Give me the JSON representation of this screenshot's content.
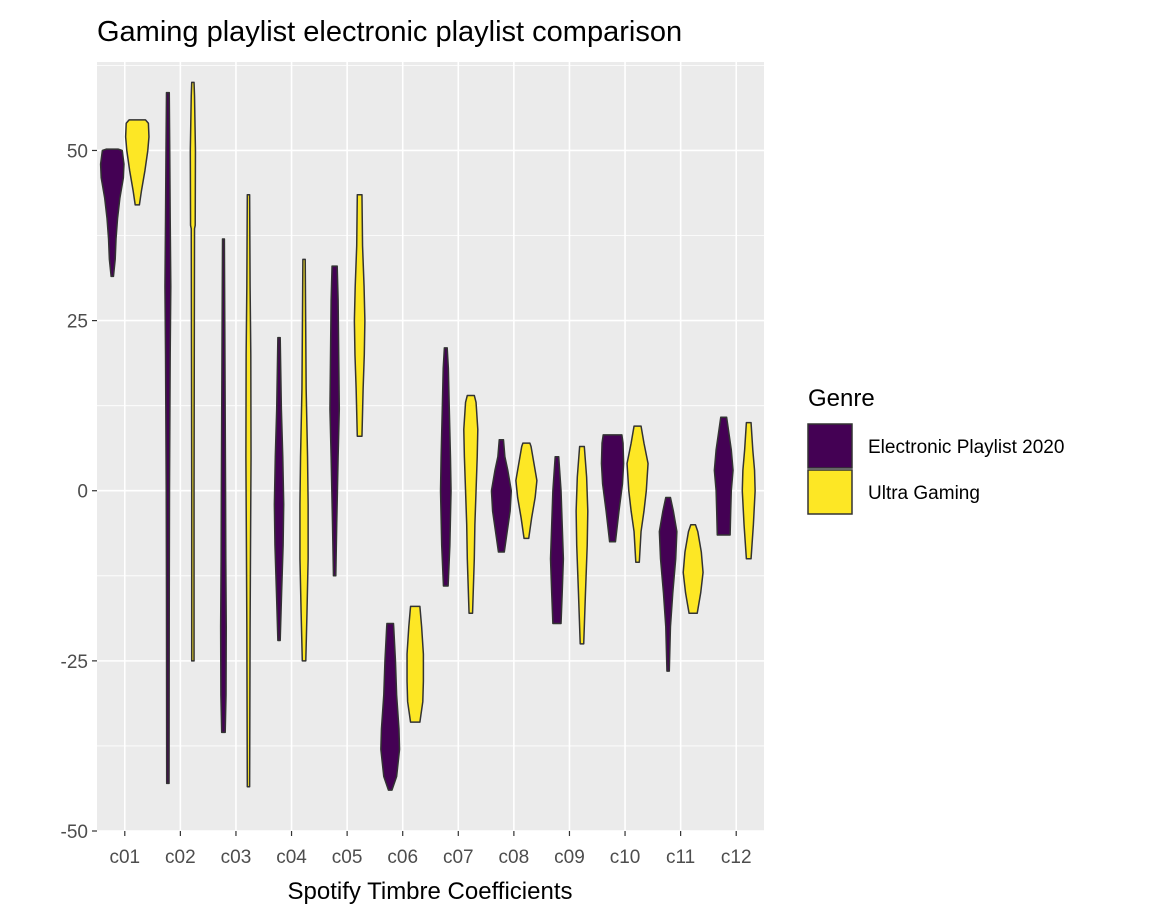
{
  "chart_data": {
    "type": "violin",
    "title": "Gaming playlist electronic playlist comparison",
    "xlabel": "Spotify Timbre Coefficients",
    "ylabel": "",
    "ylim": [
      -50,
      63
    ],
    "yticks": [
      -50,
      -25,
      0,
      25,
      50
    ],
    "grid": true,
    "categories": [
      "c01",
      "c02",
      "c03",
      "c04",
      "c05",
      "c06",
      "c07",
      "c08",
      "c09",
      "c10",
      "c11",
      "c12"
    ],
    "legend": {
      "title": "Genre",
      "placement": "right"
    },
    "series": [
      {
        "name": "Electronic Playlist 2020",
        "color": "#440154",
        "violins": [
          {
            "profile": [
              [
                31.5,
                0.1
              ],
              [
                34,
                0.25
              ],
              [
                37,
                0.32
              ],
              [
                40,
                0.45
              ],
              [
                43,
                0.65
              ],
              [
                46,
                0.95
              ],
              [
                48,
                1.0
              ],
              [
                50,
                0.85
              ],
              [
                50.2,
                0.5
              ]
            ]
          },
          {
            "profile": [
              [
                -43,
                0.1
              ],
              [
                -15,
                0.12
              ],
              [
                0,
                0.14
              ],
              [
                20,
                0.2
              ],
              [
                30,
                0.25
              ],
              [
                40,
                0.2
              ],
              [
                50,
                0.16
              ],
              [
                58.5,
                0.12
              ]
            ]
          },
          {
            "profile": [
              [
                -35.5,
                0.15
              ],
              [
                -30,
                0.22
              ],
              [
                -20,
                0.24
              ],
              [
                -10,
                0.2
              ],
              [
                0,
                0.18
              ],
              [
                15,
                0.14
              ],
              [
                30,
                0.1
              ],
              [
                37,
                0.08
              ]
            ]
          },
          {
            "profile": [
              [
                -22,
                0.1
              ],
              [
                -15,
                0.22
              ],
              [
                -8,
                0.35
              ],
              [
                -2,
                0.4
              ],
              [
                5,
                0.32
              ],
              [
                12,
                0.2
              ],
              [
                22.5,
                0.1
              ]
            ]
          },
          {
            "profile": [
              [
                -12.5,
                0.1
              ],
              [
                -5,
                0.18
              ],
              [
                5,
                0.3
              ],
              [
                12,
                0.4
              ],
              [
                20,
                0.35
              ],
              [
                28,
                0.3
              ],
              [
                33,
                0.22
              ]
            ]
          },
          {
            "profile": [
              [
                -44,
                0.15
              ],
              [
                -42,
                0.55
              ],
              [
                -38,
                0.8
              ],
              [
                -35,
                0.75
              ],
              [
                -30,
                0.55
              ],
              [
                -25,
                0.45
              ],
              [
                -20,
                0.3
              ],
              [
                -19.5,
                0.28
              ]
            ]
          },
          {
            "profile": [
              [
                -14,
                0.2
              ],
              [
                -8,
                0.35
              ],
              [
                0,
                0.45
              ],
              [
                5,
                0.4
              ],
              [
                12,
                0.3
              ],
              [
                18,
                0.22
              ],
              [
                21,
                0.12
              ]
            ]
          },
          {
            "profile": [
              [
                -9,
                0.25
              ],
              [
                -6,
                0.5
              ],
              [
                -3,
                0.75
              ],
              [
                0,
                0.85
              ],
              [
                3,
                0.55
              ],
              [
                5,
                0.3
              ],
              [
                7.5,
                0.18
              ]
            ]
          },
          {
            "profile": [
              [
                -19.5,
                0.35
              ],
              [
                -15,
                0.45
              ],
              [
                -10,
                0.55
              ],
              [
                -5,
                0.45
              ],
              [
                0,
                0.35
              ],
              [
                5,
                0.15
              ]
            ]
          },
          {
            "profile": [
              [
                -7.5,
                0.25
              ],
              [
                -3,
                0.55
              ],
              [
                1,
                0.85
              ],
              [
                4,
                0.95
              ],
              [
                7,
                0.9
              ],
              [
                8.2,
                0.8
              ]
            ]
          },
          {
            "profile": [
              [
                -26.5,
                0.1
              ],
              [
                -20,
                0.2
              ],
              [
                -15,
                0.4
              ],
              [
                -10,
                0.65
              ],
              [
                -6,
                0.75
              ],
              [
                -3,
                0.45
              ],
              [
                -1,
                0.2
              ]
            ]
          },
          {
            "profile": [
              [
                -6.5,
                0.55
              ],
              [
                -3,
                0.6
              ],
              [
                0,
                0.65
              ],
              [
                3,
                0.8
              ],
              [
                6,
                0.65
              ],
              [
                9,
                0.4
              ],
              [
                10.8,
                0.25
              ]
            ]
          }
        ]
      },
      {
        "name": "Ultra Gaming",
        "color": "#fde725",
        "violins": [
          {
            "profile": [
              [
                42,
                0.18
              ],
              [
                44,
                0.35
              ],
              [
                47,
                0.65
              ],
              [
                50,
                0.9
              ],
              [
                52,
                1.0
              ],
              [
                54,
                0.95
              ],
              [
                54.5,
                0.7
              ]
            ]
          },
          {
            "profile": [
              [
                -25,
                0.1
              ],
              [
                0,
                0.1
              ],
              [
                20,
                0.12
              ],
              [
                38.5,
                0.14
              ],
              [
                39,
                0.2
              ],
              [
                50,
                0.22
              ],
              [
                58,
                0.14
              ],
              [
                60,
                0.1
              ]
            ]
          },
          {
            "profile": [
              [
                -43.5,
                0.1
              ],
              [
                -20,
                0.14
              ],
              [
                -7,
                0.18
              ],
              [
                5,
                0.22
              ],
              [
                20,
                0.2
              ],
              [
                30,
                0.14
              ],
              [
                43.5,
                0.1
              ]
            ]
          },
          {
            "profile": [
              [
                -25,
                0.15
              ],
              [
                -18,
                0.25
              ],
              [
                -10,
                0.35
              ],
              [
                -2,
                0.35
              ],
              [
                5,
                0.3
              ],
              [
                15,
                0.18
              ],
              [
                34,
                0.1
              ]
            ]
          },
          {
            "profile": [
              [
                8,
                0.2
              ],
              [
                15,
                0.3
              ],
              [
                20,
                0.4
              ],
              [
                25,
                0.45
              ],
              [
                30,
                0.38
              ],
              [
                36,
                0.25
              ],
              [
                43.5,
                0.2
              ]
            ]
          },
          {
            "profile": [
              [
                -34,
                0.4
              ],
              [
                -31,
                0.65
              ],
              [
                -28,
                0.7
              ],
              [
                -24,
                0.7
              ],
              [
                -20,
                0.55
              ],
              [
                -17,
                0.4
              ]
            ]
          },
          {
            "profile": [
              [
                -18,
                0.15
              ],
              [
                -10,
                0.3
              ],
              [
                -5,
                0.35
              ],
              [
                0,
                0.45
              ],
              [
                5,
                0.55
              ],
              [
                9,
                0.6
              ],
              [
                13,
                0.45
              ],
              [
                14,
                0.3
              ]
            ]
          },
          {
            "profile": [
              [
                -7,
                0.2
              ],
              [
                -4,
                0.45
              ],
              [
                -1,
                0.75
              ],
              [
                1.5,
                0.9
              ],
              [
                4,
                0.65
              ],
              [
                6.5,
                0.4
              ],
              [
                7,
                0.3
              ]
            ]
          },
          {
            "profile": [
              [
                -22.5,
                0.15
              ],
              [
                -15,
                0.3
              ],
              [
                -8,
                0.45
              ],
              [
                -3,
                0.5
              ],
              [
                2,
                0.4
              ],
              [
                6.5,
                0.2
              ]
            ]
          },
          {
            "profile": [
              [
                -10.5,
                0.15
              ],
              [
                -6,
                0.3
              ],
              [
                -3,
                0.55
              ],
              [
                0,
                0.75
              ],
              [
                4,
                0.9
              ],
              [
                7,
                0.55
              ],
              [
                9.5,
                0.3
              ]
            ]
          },
          {
            "profile": [
              [
                -18,
                0.35
              ],
              [
                -15,
                0.65
              ],
              [
                -12,
                0.85
              ],
              [
                -9,
                0.7
              ],
              [
                -6,
                0.4
              ],
              [
                -5,
                0.2
              ]
            ]
          },
          {
            "profile": [
              [
                -10,
                0.2
              ],
              [
                -5,
                0.4
              ],
              [
                0,
                0.55
              ],
              [
                3,
                0.5
              ],
              [
                6,
                0.35
              ],
              [
                10,
                0.2
              ]
            ]
          }
        ]
      }
    ]
  }
}
